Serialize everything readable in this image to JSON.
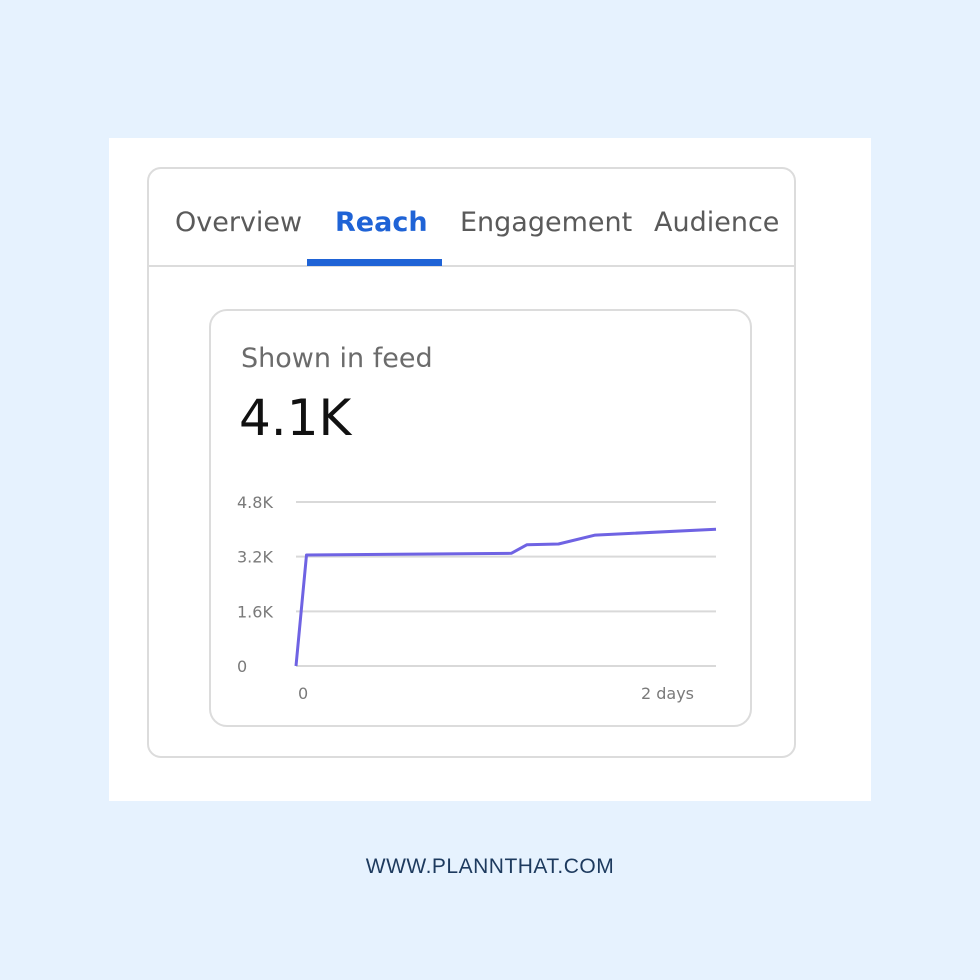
{
  "tabs": [
    {
      "label": "Overview",
      "active": false
    },
    {
      "label": "Reach",
      "active": true
    },
    {
      "label": "Engagement",
      "active": false
    },
    {
      "label": "Audience",
      "active": false
    }
  ],
  "metric": {
    "label": "Shown in feed",
    "value": "4.1K"
  },
  "chart_data": {
    "type": "line",
    "title": "",
    "xlabel": "",
    "ylabel": "",
    "y_ticks": [
      "4.8K",
      "3.2K",
      "1.6K",
      "0"
    ],
    "y_tick_values": [
      4800,
      3200,
      1600,
      0
    ],
    "x_ticks": [
      "0",
      "2 days"
    ],
    "ylim": [
      0,
      4800
    ],
    "grid": true,
    "line_color": "#6f63e3",
    "series": [
      {
        "values": [
          {
            "x": 0,
            "y": 0
          },
          {
            "x": 0.04,
            "y": 3250
          },
          {
            "x": 0.82,
            "y": 3300
          },
          {
            "x": 0.88,
            "y": 3550
          },
          {
            "x": 1.0,
            "y": 3570
          },
          {
            "x": 1.14,
            "y": 3830
          },
          {
            "x": 1.6,
            "y": 4000
          }
        ]
      }
    ]
  },
  "footer": {
    "text": "WWW.PLANNTHAT.COM"
  },
  "colors": {
    "background": "#e6f2fe",
    "accent": "#1f63d6",
    "line": "#6f63e3",
    "footer_text": "#1d3a5e"
  }
}
